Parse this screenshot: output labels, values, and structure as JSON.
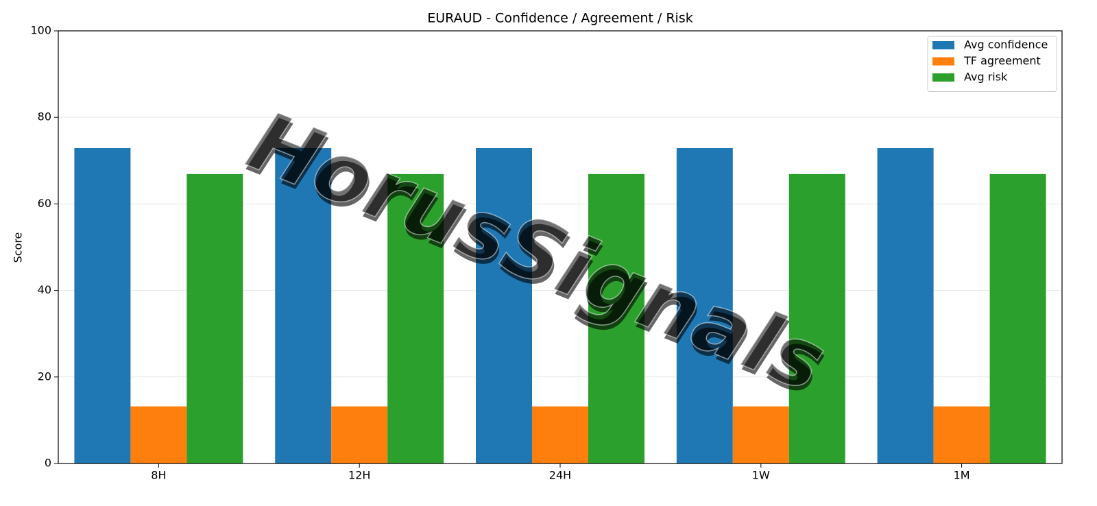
{
  "chart_data": {
    "type": "bar",
    "title": "EURAUD - Confidence / Agreement / Risk",
    "ylabel": "Score",
    "watermark": "HorusSignals",
    "categories": [
      "8H",
      "12H",
      "24H",
      "1W",
      "1M"
    ],
    "series": [
      {
        "name": "Avg confidence",
        "color": "#1f77b4",
        "values": [
          72.9,
          72.9,
          72.9,
          72.9,
          72.9
        ]
      },
      {
        "name": "TF agreement",
        "color": "#ff7f0e",
        "values": [
          13.2,
          13.2,
          13.2,
          13.2,
          13.2
        ]
      },
      {
        "name": "Avg risk",
        "color": "#2ca02c",
        "values": [
          66.9,
          66.9,
          66.9,
          66.9,
          66.9
        ]
      }
    ],
    "ylim": [
      0,
      100
    ],
    "yticks": [
      0,
      20,
      40,
      60,
      80,
      100
    ],
    "grid": true,
    "legend": "upper right"
  }
}
